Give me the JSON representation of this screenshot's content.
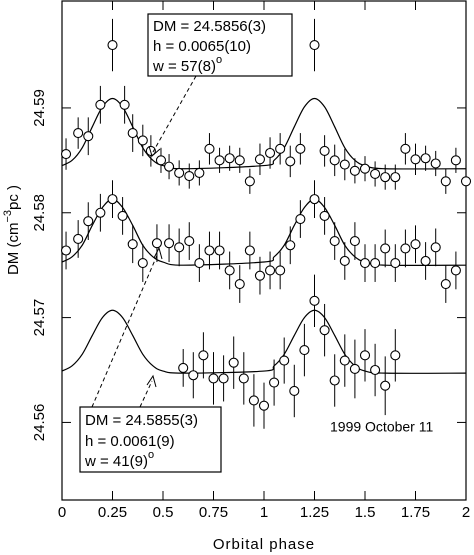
{
  "chart_data": {
    "type": "scatter",
    "xlabel": "Orbital phase",
    "ylabel": [
      "DM (cm",
      "−3",
      "pc )"
    ],
    "note": "1999 October 11",
    "annotations": [
      {
        "lines": [
          "DM = 24.5856(3)",
          "h = 0.0065(10)",
          "w = 57(8)"
        ],
        "superscript": "o"
      },
      {
        "lines": [
          "DM = 24.5855(3)",
          "h = 0.0061(9)",
          "w = 41(9)"
        ],
        "superscript": "o"
      }
    ],
    "color": "#000000",
    "xlim": [
      0,
      2
    ],
    "xticks": [
      0,
      0.25,
      0.5,
      0.75,
      1,
      1.25,
      1.5,
      1.75,
      2
    ],
    "ylim": [
      24.5526,
      24.6002
    ],
    "yticks": [
      24.56,
      24.57,
      24.58,
      24.59
    ],
    "series": [
      {
        "x": [
          0.02,
          0.08,
          0.13,
          0.19,
          0.25,
          0.31,
          0.35,
          0.4,
          0.44,
          0.49,
          0.53,
          0.58,
          0.63,
          0.68,
          0.73,
          0.78,
          0.83,
          0.88,
          0.93,
          0.98,
          1.03,
          1.08,
          1.13,
          1.18,
          1.25,
          1.3,
          1.35,
          1.4,
          1.45,
          1.5,
          1.55,
          1.6,
          1.65,
          1.7,
          1.75,
          1.8,
          1.85,
          1.9,
          1.95,
          2.0
        ],
        "values": [
          24.5856,
          24.5876,
          24.5873,
          24.5903,
          24.596,
          24.5903,
          24.5876,
          24.5869,
          24.5859,
          24.585,
          24.5844,
          24.5838,
          24.5835,
          24.5838,
          24.5861,
          24.585,
          24.5852,
          24.585,
          24.583,
          24.5851,
          24.5857,
          24.5861,
          24.5849,
          24.5861,
          24.596,
          24.5859,
          24.585,
          24.5846,
          24.584,
          24.5842,
          24.5837,
          24.5834,
          24.5834,
          24.5861,
          24.5851,
          24.5852,
          24.5847,
          24.583,
          24.585,
          24.583
        ],
        "errors": [
          0.0015,
          0.0015,
          0.0018,
          0.0018,
          0.0025,
          0.0018,
          0.0018,
          0.0015,
          0.0015,
          0.0012,
          0.0012,
          0.0012,
          0.0012,
          0.0012,
          0.0015,
          0.0012,
          0.0012,
          0.0012,
          0.0012,
          0.0015,
          0.0015,
          0.0015,
          0.0015,
          0.0015,
          0.0025,
          0.0015,
          0.0015,
          0.0015,
          0.0012,
          0.0012,
          0.0012,
          0.0012,
          0.0012,
          0.0015,
          0.0015,
          0.0012,
          0.0012,
          0.0012,
          0.0012,
          0.0012
        ]
      },
      {
        "x": [
          0.02,
          0.08,
          0.13,
          0.19,
          0.25,
          0.3,
          0.35,
          0.4,
          0.47,
          0.53,
          0.58,
          0.63,
          0.68,
          0.73,
          0.78,
          0.83,
          0.88,
          0.93,
          0.98,
          1.03,
          1.08,
          1.13,
          1.18,
          1.25,
          1.3,
          1.35,
          1.4,
          1.45,
          1.5,
          1.55,
          1.6,
          1.65,
          1.7,
          1.75,
          1.8,
          1.85,
          1.9,
          1.95
        ],
        "values": [
          24.5764,
          24.5775,
          24.5792,
          24.58,
          24.5813,
          24.5797,
          24.577,
          24.5752,
          24.5771,
          24.5771,
          24.5767,
          24.5773,
          24.5752,
          24.5764,
          24.5764,
          24.5745,
          24.5732,
          24.5764,
          24.574,
          24.5745,
          24.5745,
          24.5769,
          24.5794,
          24.5813,
          24.5797,
          24.5773,
          24.5754,
          24.5773,
          24.5752,
          24.5752,
          24.5766,
          24.5752,
          24.5766,
          24.577,
          24.5754,
          24.5767,
          24.5732,
          24.5745
        ],
        "errors": [
          0.0018,
          0.0018,
          0.0018,
          0.0018,
          0.0018,
          0.0018,
          0.0018,
          0.0018,
          0.0018,
          0.0018,
          0.0018,
          0.0018,
          0.0018,
          0.0018,
          0.0018,
          0.0018,
          0.0018,
          0.0018,
          0.0018,
          0.0018,
          0.0018,
          0.0018,
          0.0018,
          0.0018,
          0.0018,
          0.0018,
          0.0018,
          0.0018,
          0.0018,
          0.0018,
          0.0018,
          0.0018,
          0.0018,
          0.0018,
          0.0018,
          0.0018,
          0.0018,
          0.0018
        ]
      },
      {
        "x": [
          0.6,
          0.65,
          0.7,
          0.75,
          0.8,
          0.85,
          0.9,
          0.95,
          1.0,
          1.05,
          1.1,
          1.15,
          1.2,
          1.25,
          1.3,
          1.35,
          1.4,
          1.45,
          1.5,
          1.55,
          1.6,
          1.65
        ],
        "values": [
          24.5652,
          24.5645,
          24.5664,
          24.5642,
          24.5642,
          24.5657,
          24.5642,
          24.5621,
          24.5616,
          24.5638,
          24.5659,
          24.563,
          24.5669,
          24.5716,
          24.5688,
          24.564,
          24.5659,
          24.5651,
          24.5664,
          24.565,
          24.5635,
          24.5664
        ],
        "errors": [
          0.0018,
          0.0022,
          0.0022,
          0.0025,
          0.0022,
          0.0025,
          0.0025,
          0.0025,
          0.0022,
          0.0022,
          0.0022,
          0.0025,
          0.0025,
          0.0025,
          0.0025,
          0.0025,
          0.0025,
          0.0028,
          0.0025,
          0.0025,
          0.0028,
          0.0025
        ]
      }
    ],
    "curve_x": [
      0,
      0.05,
      0.1,
      0.15,
      0.2,
      0.25,
      0.3,
      0.35,
      0.4,
      0.45,
      0.5,
      0.6,
      1.0,
      1.05,
      1.1,
      1.15,
      1.2,
      1.25,
      1.3,
      1.35,
      1.4,
      1.45,
      1.5,
      1.6,
      2.0
    ],
    "curves": [
      {
        "values": [
          24.5845,
          24.585,
          24.5862,
          24.5882,
          24.5901,
          24.5909,
          24.5901,
          24.5882,
          24.5862,
          24.585,
          24.5845,
          24.5842,
          24.5845,
          24.585,
          24.5862,
          24.5882,
          24.5901,
          24.5909,
          24.5901,
          24.5882,
          24.5862,
          24.585,
          24.5845,
          24.5842,
          24.5842
        ]
      },
      {
        "values": [
          24.5753,
          24.5758,
          24.5769,
          24.5788,
          24.5805,
          24.5813,
          24.5805,
          24.5788,
          24.5769,
          24.5758,
          24.5753,
          24.575,
          24.5753,
          24.5758,
          24.5769,
          24.5788,
          24.5805,
          24.5813,
          24.5805,
          24.5788,
          24.5769,
          24.5758,
          24.5753,
          24.575,
          24.575
        ]
      },
      {
        "values": [
          24.5649,
          24.5654,
          24.5665,
          24.5683,
          24.57,
          24.5707,
          24.57,
          24.5683,
          24.5665,
          24.5654,
          24.5649,
          24.5647,
          24.5649,
          24.5654,
          24.5665,
          24.5683,
          24.57,
          24.5707,
          24.57,
          24.5683,
          24.5665,
          24.5654,
          24.5649,
          24.5647,
          24.5647
        ]
      }
    ]
  }
}
